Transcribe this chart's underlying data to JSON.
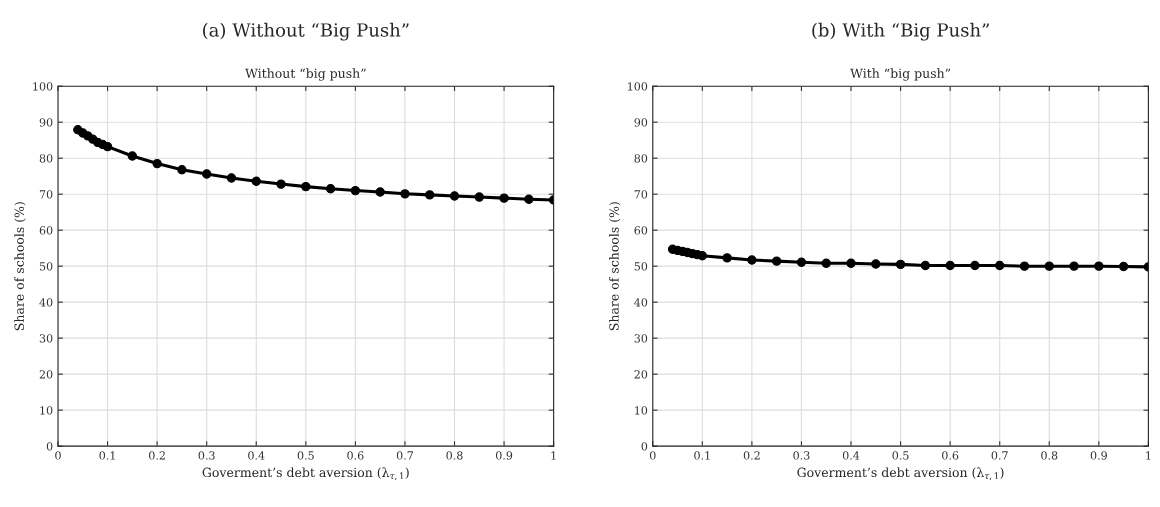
{
  "chart_data": [
    {
      "type": "line",
      "title": "(a) Without “Big Push”",
      "subtitle": "Without “big push”",
      "xlabel": "Goverment’s debt aversion (λ$_{τ,1}$)",
      "ylabel": "Share of schools (%)",
      "x": [
        0.04,
        0.05,
        0.06,
        0.07,
        0.08,
        0.09,
        0.1,
        0.15,
        0.2,
        0.25,
        0.3,
        0.35,
        0.4,
        0.45,
        0.5,
        0.55,
        0.6,
        0.65,
        0.7,
        0.75,
        0.8,
        0.85,
        0.9,
        0.95,
        1.0
      ],
      "series": [
        {
          "color": "#000000",
          "values": [
            87.9,
            87.0,
            86.2,
            85.3,
            84.4,
            83.8,
            83.2,
            80.6,
            78.5,
            76.8,
            75.6,
            74.5,
            73.6,
            72.8,
            72.1,
            71.5,
            71.0,
            70.6,
            70.1,
            69.8,
            69.5,
            69.2,
            68.9,
            68.6,
            68.4
          ]
        }
      ],
      "xlim": [
        0,
        1
      ],
      "xticks": [
        0,
        0.1,
        0.2,
        0.3,
        0.4,
        0.5,
        0.6,
        0.7,
        0.8,
        0.9,
        1
      ],
      "ylim": [
        0,
        100
      ],
      "yticks": [
        0,
        10,
        20,
        30,
        40,
        50,
        60,
        70,
        80,
        90,
        100
      ],
      "grid": true,
      "marker": "circle",
      "line_style": "solid",
      "legend": false
    },
    {
      "type": "line",
      "title": "(b) With “Big Push”",
      "subtitle": "With “big push”",
      "xlabel": "Goverment’s debt aversion (λ$_{τ,1}$)",
      "ylabel": "Share of schools (%)",
      "x": [
        0.04,
        0.05,
        0.06,
        0.07,
        0.08,
        0.09,
        0.1,
        0.15,
        0.2,
        0.25,
        0.3,
        0.35,
        0.4,
        0.45,
        0.5,
        0.55,
        0.6,
        0.65,
        0.7,
        0.75,
        0.8,
        0.85,
        0.9,
        0.95,
        1.0
      ],
      "series": [
        {
          "color": "#000000",
          "values": [
            54.7,
            54.4,
            54.1,
            53.8,
            53.5,
            53.2,
            52.9,
            52.3,
            51.7,
            51.4,
            51.1,
            50.8,
            50.8,
            50.6,
            50.5,
            50.2,
            50.2,
            50.2,
            50.2,
            50.0,
            50.0,
            50.0,
            50.0,
            49.9,
            49.8
          ]
        }
      ],
      "xlim": [
        0,
        1
      ],
      "xticks": [
        0,
        0.1,
        0.2,
        0.3,
        0.4,
        0.5,
        0.6,
        0.7,
        0.8,
        0.9,
        1
      ],
      "ylim": [
        0,
        100
      ],
      "yticks": [
        0,
        10,
        20,
        30,
        40,
        50,
        60,
        70,
        80,
        90,
        100
      ],
      "grid": true,
      "marker": "circle",
      "line_style": "solid",
      "legend": false
    }
  ]
}
